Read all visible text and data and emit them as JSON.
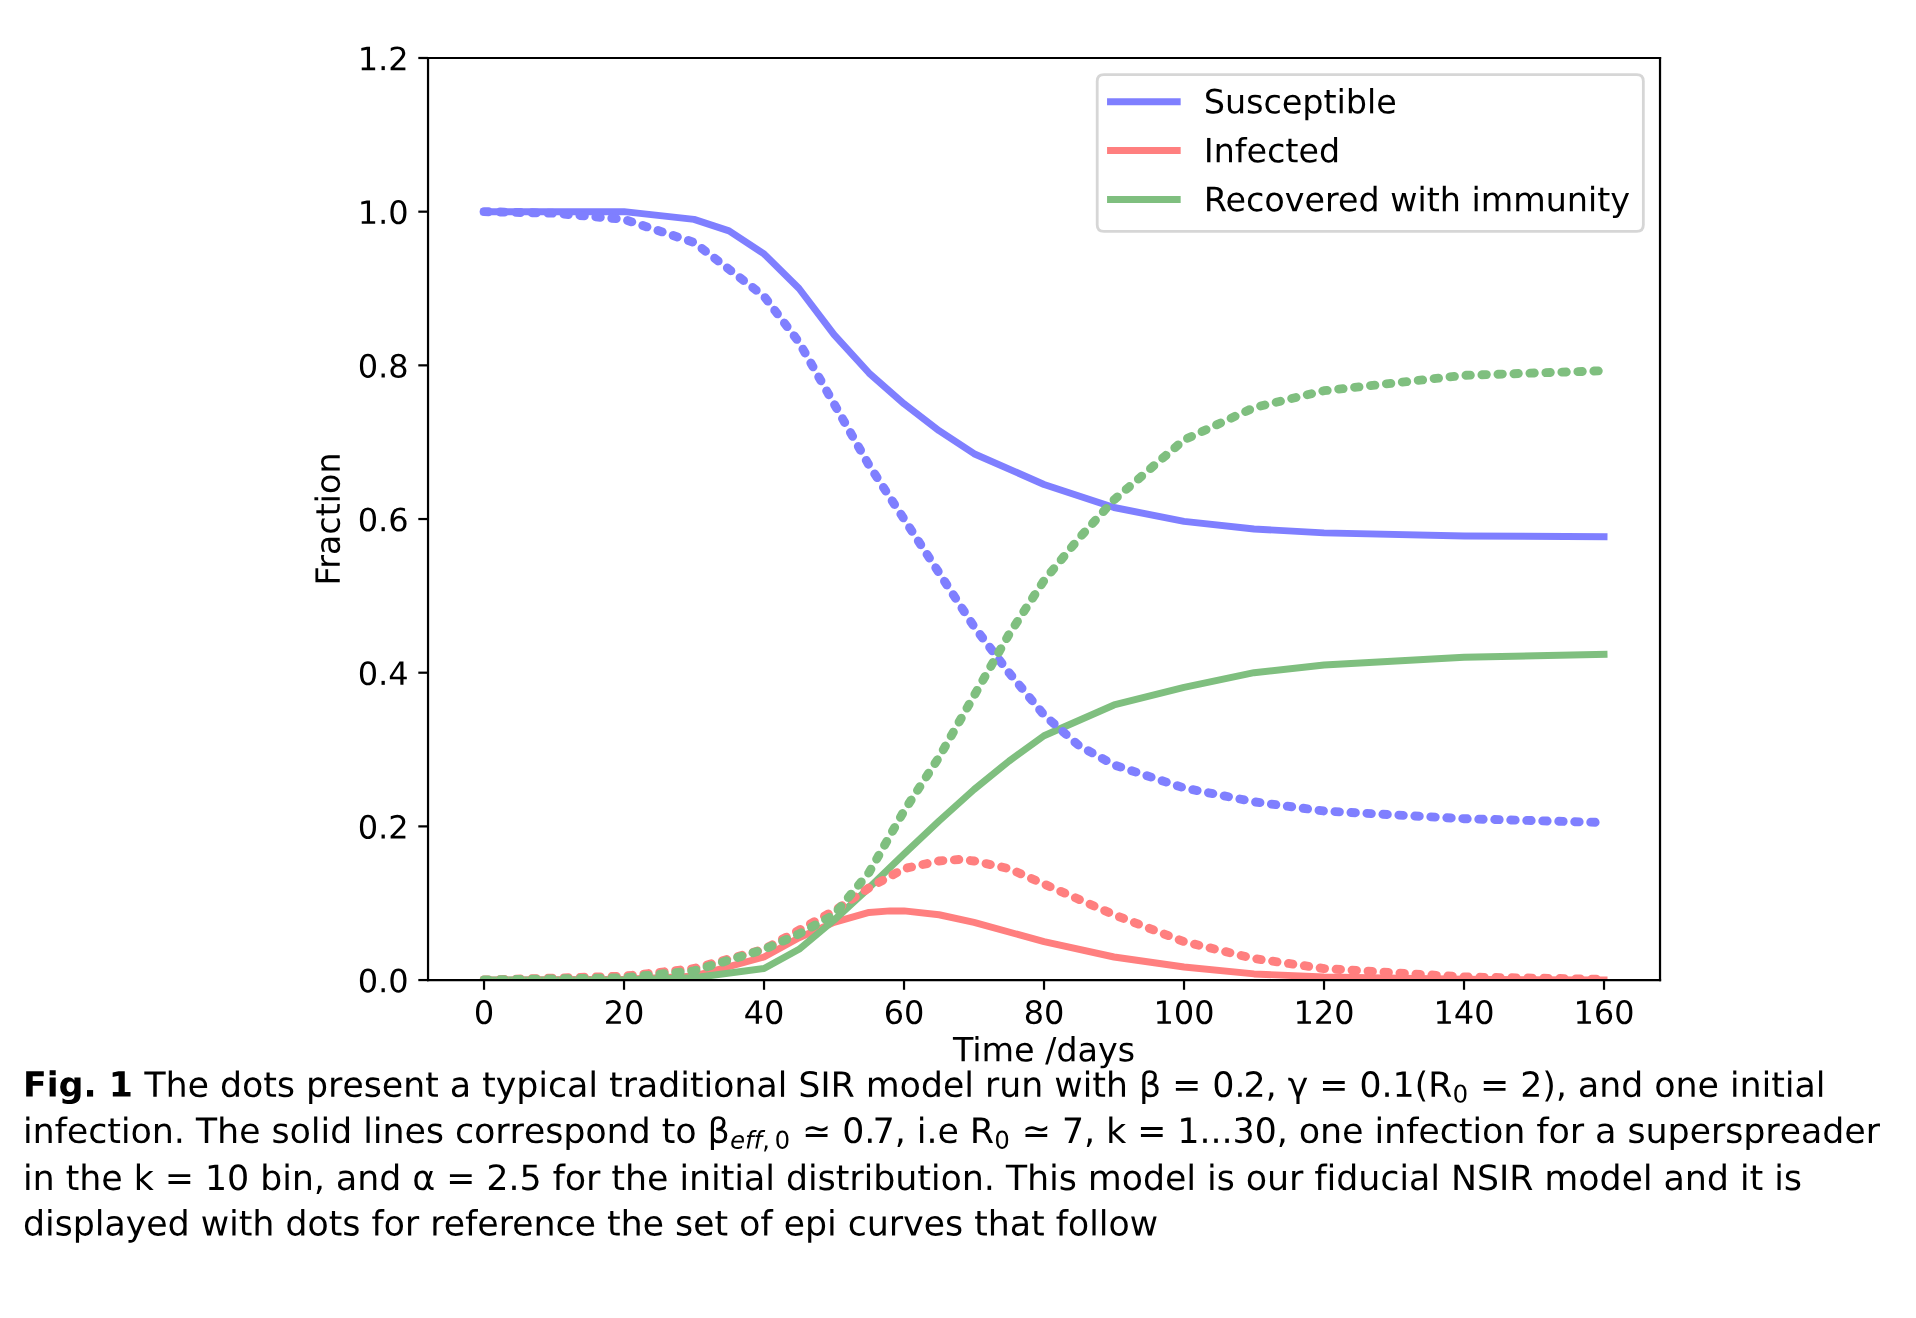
{
  "chart_data": {
    "type": "line",
    "xlabel": "Time /days",
    "ylabel": "Fraction",
    "xlim": [
      -8,
      168
    ],
    "xticks": [
      0,
      20,
      40,
      60,
      80,
      100,
      120,
      140,
      160
    ],
    "ylim": [
      0,
      1.2
    ],
    "yticks": [
      {
        "value": 0,
        "label": "0.0"
      },
      0.2,
      0.4,
      0.6,
      0.8,
      {
        "value": 1,
        "label": "1.0"
      },
      1.2
    ],
    "grid": false,
    "legend": "top right",
    "marker": "none",
    "series": [
      {
        "name": "Susceptible",
        "color": "#7f7fff",
        "line_style": "solid",
        "x": [
          0,
          20,
          30,
          35,
          40,
          45,
          50,
          55,
          60,
          65,
          70,
          80,
          90,
          100,
          110,
          120,
          140,
          160
        ],
        "values": [
          1.0,
          1.0,
          0.99,
          0.975,
          0.945,
          0.9,
          0.84,
          0.79,
          0.75,
          0.715,
          0.685,
          0.645,
          0.615,
          0.597,
          0.587,
          0.582,
          0.578,
          0.577
        ]
      },
      {
        "name": "Infected",
        "color": "#ff7f7f",
        "line_style": "solid",
        "x": [
          0,
          20,
          30,
          40,
          45,
          50,
          55,
          58,
          60,
          65,
          70,
          80,
          90,
          100,
          110,
          120,
          140,
          160
        ],
        "values": [
          0,
          0.001,
          0.005,
          0.03,
          0.055,
          0.075,
          0.088,
          0.09,
          0.09,
          0.085,
          0.075,
          0.05,
          0.03,
          0.017,
          0.008,
          0.004,
          0.001,
          0
        ]
      },
      {
        "name": "Recovered with immunity",
        "color": "#7fbf7f",
        "line_style": "solid",
        "x": [
          0,
          20,
          30,
          40,
          45,
          50,
          55,
          60,
          65,
          70,
          75,
          80,
          90,
          100,
          110,
          120,
          140,
          160
        ],
        "values": [
          0,
          0,
          0.003,
          0.015,
          0.04,
          0.078,
          0.12,
          0.164,
          0.207,
          0.248,
          0.285,
          0.318,
          0.358,
          0.381,
          0.4,
          0.41,
          0.42,
          0.424
        ]
      },
      {
        "color": "#7f7fff",
        "line_style": "dotted",
        "x": [
          0,
          10,
          20,
          30,
          40,
          45,
          50,
          55,
          60,
          65,
          70,
          75,
          80,
          85,
          90,
          100,
          110,
          120,
          140,
          160
        ],
        "values": [
          1.0,
          0.998,
          0.99,
          0.96,
          0.89,
          0.83,
          0.75,
          0.67,
          0.6,
          0.53,
          0.46,
          0.4,
          0.345,
          0.305,
          0.28,
          0.25,
          0.232,
          0.22,
          0.21,
          0.205
        ]
      },
      {
        "color": "#ff7f7f",
        "line_style": "dotted",
        "x": [
          0,
          20,
          30,
          40,
          50,
          55,
          60,
          65,
          68,
          70,
          75,
          80,
          90,
          100,
          110,
          120,
          140,
          160
        ],
        "values": [
          0,
          0.005,
          0.015,
          0.04,
          0.09,
          0.12,
          0.145,
          0.155,
          0.157,
          0.155,
          0.145,
          0.125,
          0.085,
          0.05,
          0.028,
          0.015,
          0.004,
          0.001
        ]
      },
      {
        "color": "#7fbf7f",
        "line_style": "dotted",
        "x": [
          0,
          20,
          30,
          40,
          45,
          50,
          55,
          60,
          65,
          70,
          75,
          80,
          85,
          90,
          100,
          110,
          120,
          140,
          160
        ],
        "values": [
          0,
          0.003,
          0.012,
          0.04,
          0.06,
          0.085,
          0.14,
          0.22,
          0.29,
          0.37,
          0.45,
          0.52,
          0.575,
          0.625,
          0.703,
          0.745,
          0.767,
          0.787,
          0.793
        ]
      }
    ],
    "annotations": [
      "Fig. 1",
      "The dots present a typical traditional SIR model run with β = 0.2, γ = 0.1(R$_{0}$ = 2), and one initial infection. The solid lines correspond to β$_{eff,0}$ ≃ 0.7, i.e R$_{0}$ ≃ 7, k = 1...30, one infection for a superspreader in the k = 10 bin, and α = 2.5 for the initial distribution. This model is our fiducial NSIR model and it is displayed with dots for reference the set of epi curves that follow"
    ]
  }
}
